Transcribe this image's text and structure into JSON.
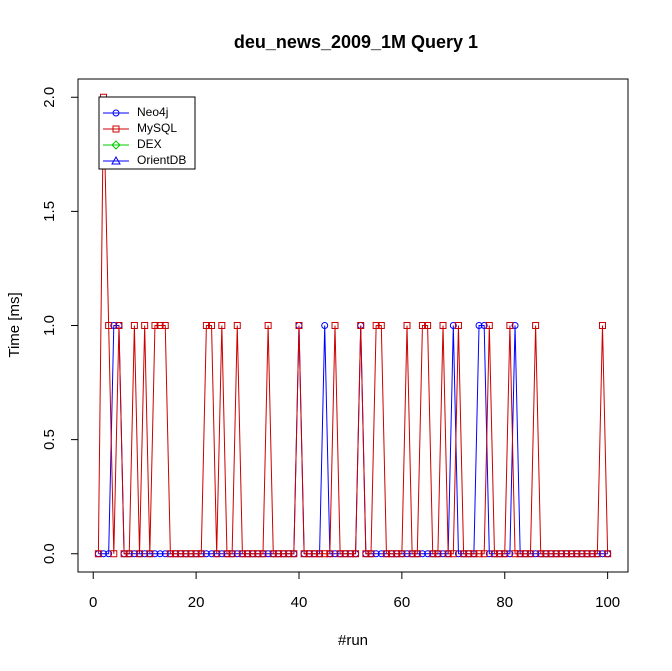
{
  "chart_data": {
    "type": "line",
    "title": "deu_news_2009_1M Query 1",
    "xlabel": "#run",
    "ylabel": "Time [ms]",
    "x": [
      1,
      2,
      3,
      4,
      5,
      6,
      7,
      8,
      9,
      10,
      11,
      12,
      13,
      14,
      15,
      16,
      17,
      18,
      19,
      20,
      21,
      22,
      23,
      24,
      25,
      26,
      27,
      28,
      29,
      30,
      31,
      32,
      33,
      34,
      35,
      36,
      37,
      38,
      39,
      40,
      41,
      42,
      43,
      44,
      45,
      46,
      47,
      48,
      49,
      50,
      51,
      52,
      53,
      54,
      55,
      56,
      57,
      58,
      59,
      60,
      61,
      62,
      63,
      64,
      65,
      66,
      67,
      68,
      69,
      70,
      71,
      72,
      73,
      74,
      75,
      76,
      77,
      78,
      79,
      80,
      81,
      82,
      83,
      84,
      85,
      86,
      87,
      88,
      89,
      90,
      91,
      92,
      93,
      94,
      95,
      96,
      97,
      98,
      99,
      100
    ],
    "series": [
      {
        "name": "Neo4j",
        "color": "#0000ff",
        "marker": "circle",
        "values": [
          0,
          0,
          0,
          1,
          1,
          0,
          0,
          0,
          0,
          0,
          0,
          0,
          0,
          0,
          0,
          0,
          0,
          0,
          0,
          0,
          0,
          0,
          0,
          0,
          0,
          0,
          0,
          0,
          0,
          0,
          0,
          0,
          0,
          0,
          0,
          0,
          0,
          0,
          0,
          1,
          0,
          0,
          0,
          0,
          1,
          0,
          0,
          0,
          0,
          0,
          0,
          1,
          0,
          0,
          0,
          0,
          0,
          0,
          0,
          0,
          0,
          0,
          0,
          0,
          0,
          0,
          0,
          0,
          0,
          1,
          0,
          0,
          0,
          0,
          1,
          1,
          0,
          0,
          0,
          0,
          0,
          1,
          0,
          0,
          0,
          0,
          0,
          0,
          0,
          0,
          0,
          0,
          0,
          0,
          0,
          0,
          0,
          0,
          0,
          0
        ]
      },
      {
        "name": "MySQL",
        "color": "#cc0000",
        "marker": "square",
        "values": [
          0,
          2,
          1,
          0,
          1,
          0,
          0,
          1,
          0,
          1,
          0,
          1,
          1,
          1,
          0,
          0,
          0,
          0,
          0,
          0,
          0,
          1,
          1,
          0,
          1,
          0,
          0,
          1,
          0,
          0,
          0,
          0,
          0,
          1,
          0,
          0,
          0,
          0,
          0,
          1,
          0,
          0,
          0,
          0,
          0,
          0,
          1,
          0,
          0,
          0,
          0,
          1,
          0,
          0,
          1,
          1,
          0,
          0,
          0,
          0,
          1,
          0,
          0,
          1,
          1,
          0,
          0,
          1,
          0,
          0,
          1,
          0,
          0,
          0,
          0,
          0,
          1,
          0,
          0,
          0,
          1,
          0,
          0,
          0,
          0,
          1,
          0,
          0,
          0,
          0,
          0,
          0,
          0,
          0,
          0,
          0,
          0,
          0,
          1,
          0
        ]
      },
      {
        "name": "DEX",
        "color": "#00cc00",
        "marker": "diamond",
        "values": [
          null,
          null,
          null,
          null,
          null,
          null,
          null,
          null,
          null,
          null,
          null,
          null,
          null,
          null,
          null,
          null,
          null,
          null,
          null,
          null,
          null,
          null,
          null,
          null,
          null,
          null,
          null,
          null,
          null,
          null,
          null,
          null,
          null,
          null,
          null,
          null,
          null,
          null,
          null,
          null,
          null,
          null,
          null,
          null,
          null,
          null,
          null,
          null,
          null,
          null,
          null,
          null,
          null,
          null,
          null,
          null,
          null,
          null,
          null,
          null,
          null,
          null,
          null,
          null,
          null,
          null,
          null,
          null,
          null,
          null,
          null,
          null,
          null,
          null,
          null,
          null,
          null,
          null,
          null,
          null,
          null,
          null,
          null,
          null,
          null,
          null,
          null,
          null,
          null,
          null,
          null,
          null,
          null,
          null,
          null,
          null,
          null,
          null,
          null,
          null
        ]
      },
      {
        "name": "OrientDB",
        "color": "#0000ff",
        "marker": "triangle",
        "values": [
          null,
          null,
          null,
          null,
          null,
          null,
          null,
          null,
          null,
          null,
          null,
          null,
          null,
          null,
          null,
          null,
          null,
          null,
          null,
          null,
          null,
          null,
          null,
          null,
          null,
          null,
          null,
          null,
          null,
          null,
          null,
          null,
          null,
          null,
          null,
          null,
          null,
          null,
          null,
          null,
          null,
          null,
          null,
          null,
          null,
          null,
          null,
          null,
          null,
          null,
          null,
          null,
          null,
          null,
          null,
          null,
          null,
          null,
          null,
          null,
          null,
          null,
          null,
          null,
          null,
          null,
          null,
          null,
          null,
          null,
          null,
          null,
          null,
          null,
          null,
          null,
          null,
          null,
          null,
          null,
          null,
          null,
          null,
          null,
          null,
          null,
          null,
          null,
          null,
          null,
          null,
          null,
          null,
          null,
          null,
          null,
          null,
          null,
          null,
          null
        ]
      }
    ],
    "xlim": [
      -2.96,
      103.96
    ],
    "xticks": [
      0,
      20,
      40,
      60,
      80,
      100
    ],
    "ylim": [
      -0.08,
      2.08
    ],
    "yticks": [
      {
        "value": 0,
        "label": "0.0"
      },
      {
        "value": 0.5,
        "label": "0.5"
      },
      {
        "value": 1,
        "label": "1.0"
      },
      {
        "value": 1.5,
        "label": "1.5"
      },
      {
        "value": 2,
        "label": "2.0"
      }
    ],
    "legend": "top-left"
  }
}
